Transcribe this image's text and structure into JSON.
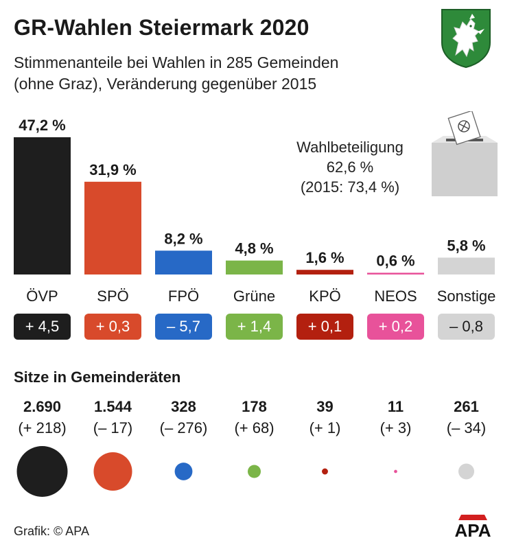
{
  "title": "GR-Wahlen Steiermark 2020",
  "subtitle_line1": "Stimmenanteile bei Wahlen in 285 Gemeinden",
  "subtitle_line2": "(ohne Graz), Veränderung gegenüber 2015",
  "turnout": {
    "label": "Wahlbeteiligung",
    "value": "62,6 %",
    "previous": "(2015: 73,4 %)"
  },
  "icons": [
    "styrian-coat-of-arms-icon",
    "ballot-box-icon"
  ],
  "seats_heading": "Sitze in Gemeinderäten",
  "credit": "Grafik: © APA",
  "logo_text": "APA",
  "chart_data": {
    "type": "bar",
    "categories": [
      "ÖVP",
      "SPÖ",
      "FPÖ",
      "Grüne",
      "KPÖ",
      "NEOS",
      "Sonstige"
    ],
    "values": [
      47.2,
      31.9,
      8.2,
      4.8,
      1.6,
      0.6,
      5.8
    ],
    "value_labels": [
      "47,2 %",
      "31,9 %",
      "8,2 %",
      "4,8 %",
      "1,6 %",
      "0,6 %",
      "5,8 %"
    ],
    "changes": [
      4.5,
      0.3,
      -5.7,
      1.4,
      0.1,
      0.2,
      -0.8
    ],
    "change_labels": [
      "+ 4,5",
      "+ 0,3",
      "– 5,7",
      "+ 1,4",
      "+ 0,1",
      "+ 0,2",
      "– 0,8"
    ],
    "colors": [
      "#1e1e1e",
      "#d84a2b",
      "#2769c6",
      "#7bb548",
      "#b3200f",
      "#e8529a",
      "#d4d4d4"
    ],
    "ylim": [
      0,
      50
    ],
    "seats": [
      2690,
      1544,
      328,
      178,
      39,
      11,
      261
    ],
    "seat_labels": [
      "2.690",
      "1.544",
      "328",
      "178",
      "39",
      "11",
      "261"
    ],
    "seat_changes": [
      218,
      -17,
      -276,
      68,
      1,
      3,
      -34
    ],
    "seat_change_labels": [
      "(+ 218)",
      "(– 17)",
      "(– 276)",
      "(+ 68)",
      "(+ 1)",
      "(+ 3)",
      "(– 34)"
    ]
  }
}
